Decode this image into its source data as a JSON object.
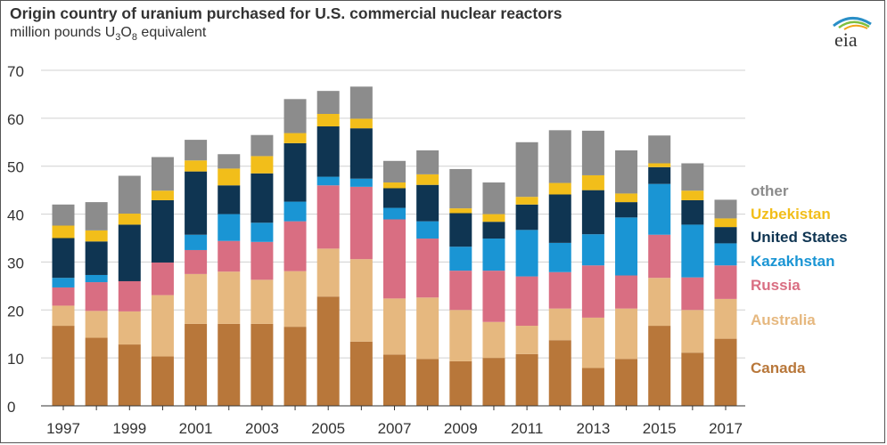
{
  "header": {
    "title": "Origin country of uranium purchased for U.S. commercial nuclear reactors",
    "subtitle_prefix": "million pounds U",
    "subtitle_sub1": "3",
    "subtitle_mid": "O",
    "subtitle_sub2": "8",
    "subtitle_suffix": " equivalent",
    "logo_text": "eia"
  },
  "colors": {
    "Canada": "#b8773a",
    "Australia": "#e6b87f",
    "Russia": "#d96e82",
    "Kazakhstan": "#1a95d4",
    "United States": "#0f3552",
    "Uzbekistan": "#f2be1a",
    "other": "#8c8c8c",
    "logo_arc_1": "#2a8fc7",
    "logo_arc_2": "#7fbf3f",
    "logo_arc_3": "#f2a41a"
  },
  "chart_data": {
    "type": "bar",
    "stacked": true,
    "title": "Origin country of uranium purchased for U.S. commercial nuclear reactors",
    "ylabel": "million pounds U3O8 equivalent",
    "ylim": [
      0,
      70
    ],
    "yticks": [
      0,
      10,
      20,
      30,
      40,
      50,
      60,
      70
    ],
    "grid": true,
    "legend_position": "right",
    "categories": [
      "1997",
      "1998",
      "1999",
      "2000",
      "2001",
      "2002",
      "2003",
      "2004",
      "2005",
      "2006",
      "2007",
      "2008",
      "2009",
      "2010",
      "2011",
      "2012",
      "2013",
      "2014",
      "2015",
      "2016",
      "2017"
    ],
    "xtick_labels": [
      "1997",
      "1999",
      "2001",
      "2003",
      "2005",
      "2007",
      "2009",
      "2011",
      "2013",
      "2015",
      "2017"
    ],
    "series": [
      {
        "name": "Canada",
        "values": [
          16.7,
          14.2,
          12.8,
          10.3,
          17.1,
          17.1,
          17.1,
          16.5,
          22.8,
          13.4,
          10.7,
          9.8,
          9.3,
          10.0,
          10.8,
          13.7,
          7.9,
          9.8,
          16.7,
          11.1,
          14.0
        ]
      },
      {
        "name": "Australia",
        "values": [
          4.2,
          5.6,
          6.9,
          12.8,
          10.4,
          10.9,
          9.2,
          11.6,
          10.0,
          17.2,
          11.7,
          12.8,
          10.7,
          7.5,
          5.9,
          6.6,
          10.5,
          10.5,
          10.0,
          8.9,
          8.3
        ]
      },
      {
        "name": "Russia",
        "values": [
          3.8,
          6.0,
          6.3,
          6.8,
          5.0,
          6.4,
          7.9,
          10.4,
          13.2,
          15.1,
          16.5,
          12.3,
          8.2,
          10.7,
          10.3,
          7.6,
          10.9,
          6.9,
          9.0,
          6.8,
          7.0
        ]
      },
      {
        "name": "Kazakhstan",
        "values": [
          2.0,
          1.5,
          0.0,
          0.0,
          3.2,
          5.6,
          4.0,
          4.1,
          1.8,
          1.7,
          2.4,
          3.6,
          5.0,
          6.7,
          9.7,
          6.1,
          6.5,
          12.1,
          10.6,
          11.0,
          4.6
        ]
      },
      {
        "name": "United States",
        "values": [
          8.3,
          7.0,
          11.8,
          13.0,
          13.2,
          6.0,
          10.3,
          12.2,
          10.5,
          10.5,
          4.1,
          7.6,
          7.0,
          3.5,
          5.3,
          10.1,
          9.2,
          3.2,
          3.5,
          5.1,
          3.4
        ]
      },
      {
        "name": "Uzbekistan",
        "values": [
          2.6,
          2.3,
          2.3,
          2.0,
          2.3,
          3.5,
          3.6,
          2.1,
          2.6,
          2.0,
          1.2,
          2.2,
          1.0,
          1.6,
          1.6,
          2.4,
          3.1,
          1.8,
          0.8,
          2.0,
          1.8
        ]
      },
      {
        "name": "other",
        "values": [
          4.4,
          5.9,
          7.9,
          7.0,
          4.3,
          3.0,
          4.4,
          7.1,
          4.8,
          6.7,
          4.5,
          5.0,
          8.2,
          6.6,
          11.4,
          11.0,
          9.3,
          9.0,
          5.8,
          5.7,
          3.9
        ]
      }
    ],
    "legend": [
      "other",
      "Uzbekistan",
      "United States",
      "Kazakhstan",
      "Russia",
      "Australia",
      "Canada"
    ]
  }
}
